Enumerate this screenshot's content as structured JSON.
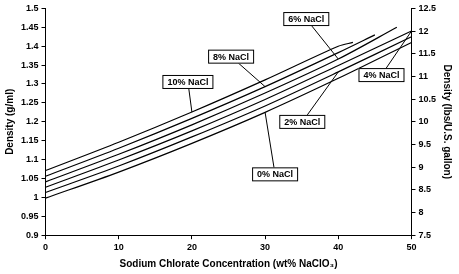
{
  "chart_data": {
    "type": "line",
    "x_label": "Sodium Chlorate Concentration (wt% NaClO₃)",
    "y_label": "Density (g/ml)",
    "y2_label": "Density (lbs/U.S. gallon)",
    "xlim": [
      0,
      50
    ],
    "xticks": [
      0,
      10,
      20,
      30,
      40,
      50
    ],
    "ylim": [
      0.9,
      1.5
    ],
    "yticks": [
      0.9,
      0.95,
      1,
      1.05,
      1.1,
      1.15,
      1.2,
      1.25,
      1.3,
      1.35,
      1.4,
      1.45,
      1.5
    ],
    "y2lim": [
      7.5,
      12.5
    ],
    "y2ticks": [
      7.5,
      8,
      8.5,
      9,
      9.5,
      10,
      10.5,
      11,
      11.5,
      12,
      12.5
    ],
    "grid": false,
    "series": [
      {
        "name": "0% NaCl",
        "color": "#000000",
        "x": [
          0,
          10,
          20,
          30,
          40,
          50
        ],
        "values": [
          0.998,
          1.067,
          1.143,
          1.225,
          1.315,
          1.41
        ]
      },
      {
        "name": "2% NaCl",
        "color": "#000000",
        "x": [
          0,
          10,
          20,
          30,
          40,
          50
        ],
        "values": [
          1.013,
          1.083,
          1.16,
          1.242,
          1.332,
          1.425
        ]
      },
      {
        "name": "4% NaCl",
        "color": "#000000",
        "x": [
          0,
          10,
          20,
          30,
          40,
          50
        ],
        "values": [
          1.027,
          1.099,
          1.176,
          1.259,
          1.349,
          1.44
        ]
      },
      {
        "name": "6% NaCl",
        "color": "#000000",
        "x": [
          0,
          10,
          20,
          30,
          40,
          48
        ],
        "values": [
          1.041,
          1.114,
          1.192,
          1.276,
          1.366,
          1.45
        ]
      },
      {
        "name": "8% NaCl",
        "color": "#000000",
        "x": [
          0,
          10,
          20,
          30,
          40,
          45
        ],
        "values": [
          1.056,
          1.13,
          1.209,
          1.293,
          1.383,
          1.43
        ]
      },
      {
        "name": "10% NaCl",
        "color": "#000000",
        "x": [
          0,
          10,
          20,
          30,
          40,
          42
        ],
        "values": [
          1.071,
          1.146,
          1.226,
          1.311,
          1.4,
          1.41
        ]
      }
    ]
  }
}
